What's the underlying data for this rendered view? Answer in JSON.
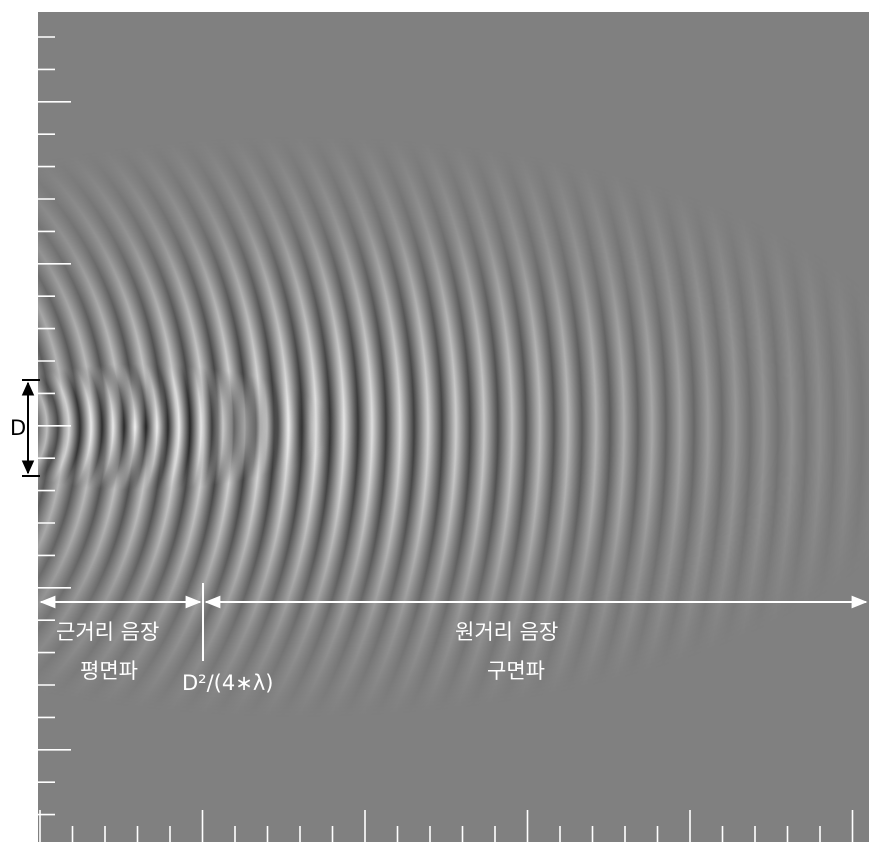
{
  "labels": {
    "aperture": "D",
    "near_field": "근거리 음장",
    "near_wave": "평면파",
    "boundary": "D²/(4∗λ)",
    "far_field": "원거리 음장",
    "far_wave": "구면파"
  }
}
